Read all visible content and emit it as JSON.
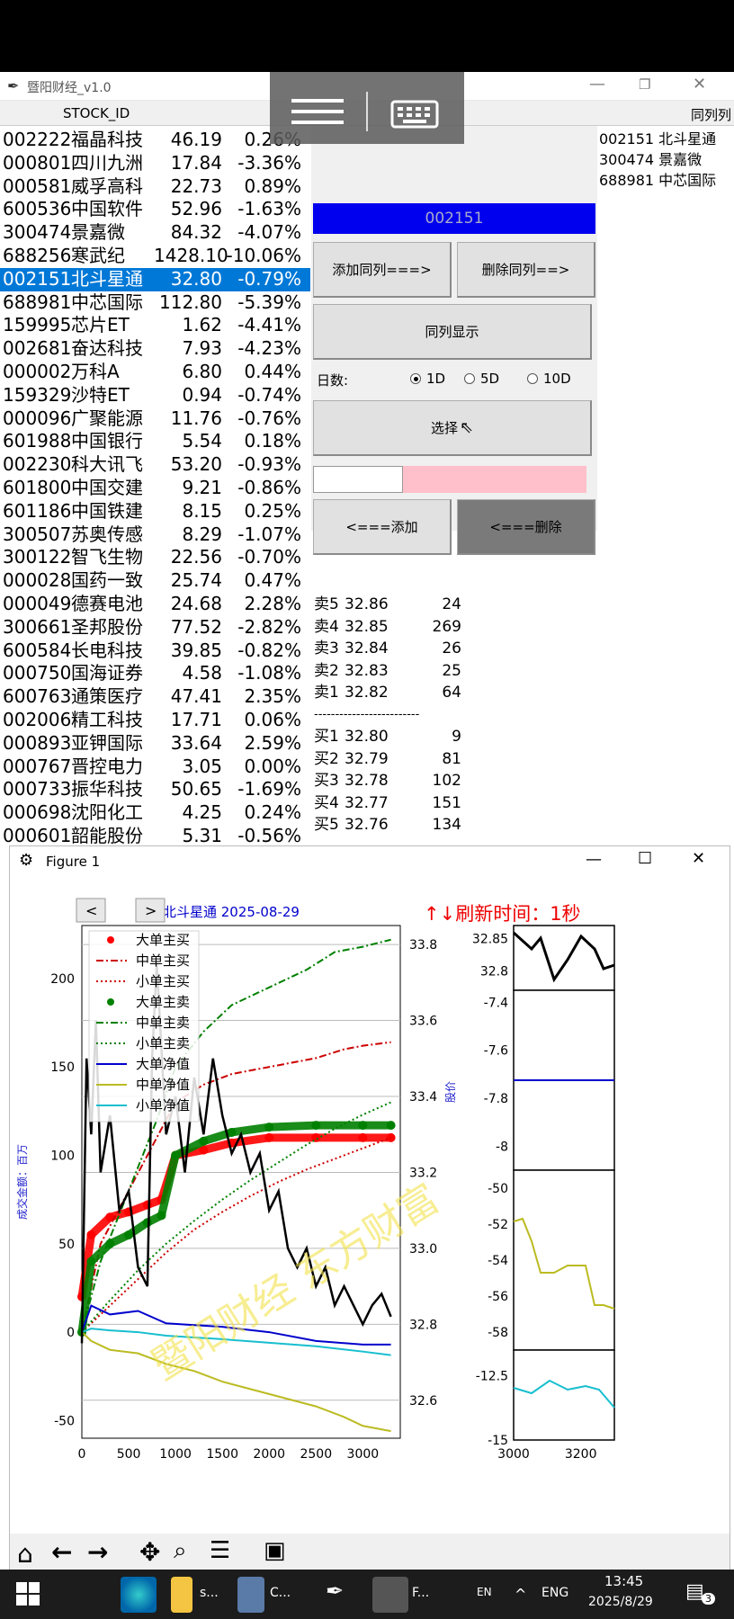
{
  "window": {
    "title": "暨阳财经_v1.0"
  },
  "header": {
    "col_stock_id": "STOCK_ID",
    "col_right": "同列列"
  },
  "stocks": [
    {
      "code": "002222",
      "name": "福晶科技",
      "price": "46.19",
      "change": "0.26%"
    },
    {
      "code": "000801",
      "name": "四川九洲",
      "price": "17.84",
      "change": "-3.36%"
    },
    {
      "code": "000581",
      "name": "威孚高科",
      "price": "22.73",
      "change": "0.89%"
    },
    {
      "code": "600536",
      "name": "中国软件",
      "price": "52.96",
      "change": "-1.63%"
    },
    {
      "code": "300474",
      "name": "景嘉微",
      "price": "84.32",
      "change": "-4.07%"
    },
    {
      "code": "688256",
      "name": "寒武纪",
      "price": "1428.10",
      "change": "-10.06%"
    },
    {
      "code": "002151",
      "name": "北斗星通",
      "price": "32.80",
      "change": "-0.79%"
    },
    {
      "code": "688981",
      "name": "中芯国际",
      "price": "112.80",
      "change": "-5.39%"
    },
    {
      "code": "159995",
      "name": "芯片ET",
      "price": "1.62",
      "change": "-4.41%"
    },
    {
      "code": "002681",
      "name": "奋达科技",
      "price": "7.93",
      "change": "-4.23%"
    },
    {
      "code": "000002",
      "name": "万科A",
      "price": "6.80",
      "change": "0.44%"
    },
    {
      "code": "159329",
      "name": "沙特ET",
      "price": "0.94",
      "change": "-0.74%"
    },
    {
      "code": "000096",
      "name": "广聚能源",
      "price": "11.76",
      "change": "-0.76%"
    },
    {
      "code": "601988",
      "name": "中国银行",
      "price": "5.54",
      "change": "0.18%"
    },
    {
      "code": "002230",
      "name": "科大讯飞",
      "price": "53.20",
      "change": "-0.93%"
    },
    {
      "code": "601800",
      "name": "中国交建",
      "price": "9.21",
      "change": "-0.86%"
    },
    {
      "code": "601186",
      "name": "中国铁建",
      "price": "8.15",
      "change": "0.25%"
    },
    {
      "code": "300507",
      "name": "苏奥传感",
      "price": "8.29",
      "change": "-1.07%"
    },
    {
      "code": "300122",
      "name": "智飞生物",
      "price": "22.56",
      "change": "-0.70%"
    },
    {
      "code": "000028",
      "name": "国药一致",
      "price": "25.74",
      "change": "0.47%"
    },
    {
      "code": "000049",
      "name": "德赛电池",
      "price": "24.68",
      "change": "2.28%"
    },
    {
      "code": "300661",
      "name": "圣邦股份",
      "price": "77.52",
      "change": "-2.82%"
    },
    {
      "code": "600584",
      "name": "长电科技",
      "price": "39.85",
      "change": "-0.82%"
    },
    {
      "code": "000750",
      "name": "国海证券",
      "price": "4.58",
      "change": "-1.08%"
    },
    {
      "code": "600763",
      "name": "通策医疗",
      "price": "47.41",
      "change": "2.35%"
    },
    {
      "code": "002006",
      "name": "精工科技",
      "price": "17.71",
      "change": "0.06%"
    },
    {
      "code": "000893",
      "name": "亚钾国际",
      "price": "33.64",
      "change": "2.59%"
    },
    {
      "code": "000767",
      "name": "晋控电力",
      "price": "3.05",
      "change": "0.00%"
    },
    {
      "code": "000733",
      "name": "振华科技",
      "price": "50.65",
      "change": "-1.69%"
    },
    {
      "code": "000698",
      "name": "沈阳化工",
      "price": "4.25",
      "change": "0.24%"
    },
    {
      "code": "000601",
      "name": "韶能股份",
      "price": "5.31",
      "change": "-0.56%"
    }
  ],
  "selected_code": "002151",
  "panel": {
    "add_btn": "添加同列===>",
    "del_btn": "删除同列==>",
    "show_btn": "同列显示",
    "days_label": "日数:",
    "radio_1d": "1D",
    "radio_5d": "5D",
    "radio_10d": "10D",
    "selected_days": "1D",
    "choose_btn": "选择",
    "add_left_btn": "<===添加",
    "del_left_btn": "<===删除"
  },
  "right_list": [
    {
      "code": "002151",
      "name": "北斗星通"
    },
    {
      "code": "300474",
      "name": "景嘉微"
    },
    {
      "code": "688981",
      "name": "中芯国际"
    }
  ],
  "orderbook": {
    "asks": [
      {
        "label": "卖5",
        "price": "32.86",
        "vol": "24"
      },
      {
        "label": "卖4",
        "price": "32.85",
        "vol": "269"
      },
      {
        "label": "卖3",
        "price": "32.84",
        "vol": "26"
      },
      {
        "label": "卖2",
        "price": "32.83",
        "vol": "25"
      },
      {
        "label": "卖1",
        "price": "32.82",
        "vol": "64"
      }
    ],
    "separator": "-------------------------",
    "bids": [
      {
        "label": "买1",
        "price": "32.80",
        "vol": "9"
      },
      {
        "label": "买2",
        "price": "32.79",
        "vol": "81"
      },
      {
        "label": "买3",
        "price": "32.78",
        "vol": "102"
      },
      {
        "label": "买4",
        "price": "32.77",
        "vol": "151"
      },
      {
        "label": "买5",
        "price": "32.76",
        "vol": "134"
      }
    ]
  },
  "figure": {
    "title": "Figure 1",
    "chart_title": "北斗星通  2025-08-29",
    "refresh": "↑↓刷新时间：1秒",
    "ylabel_left": "成交金额：百万",
    "ylabel_right": "股价",
    "watermark": "暨阳财经 东方财富",
    "legend": [
      "大单主买",
      "中单主买",
      "小单主买",
      "大单主卖",
      "中单主卖",
      "小单主卖",
      "大单净值",
      "中单净值",
      "小单净值"
    ]
  },
  "chart_data": {
    "type": "line",
    "xlim": [
      0,
      3400
    ],
    "ylim_left": [
      -60,
      230
    ],
    "ylim_right": [
      32.5,
      33.85
    ],
    "xticks": [
      0,
      500,
      1000,
      1500,
      2000,
      2500,
      3000
    ],
    "yticks_left": [
      -50,
      0,
      50,
      100,
      150,
      200
    ],
    "yticks_right": [
      32.6,
      32.8,
      33.0,
      33.2,
      33.4,
      33.6,
      33.8
    ],
    "series": [
      {
        "name": "大单主买",
        "color": "#ff0000",
        "style": "dots",
        "x": [
          0,
          100,
          300,
          500,
          700,
          850,
          1000,
          1300,
          1600,
          2000,
          2500,
          3000,
          3300
        ],
        "y": [
          20,
          55,
          65,
          68,
          72,
          75,
          100,
          103,
          107,
          110,
          110,
          110,
          110
        ]
      },
      {
        "name": "中单主买",
        "color": "#cc0000",
        "style": "dashdot",
        "x": [
          0,
          200,
          500,
          800,
          1000,
          1300,
          1600,
          2000,
          2500,
          2800,
          3000,
          3300
        ],
        "y": [
          0,
          50,
          80,
          110,
          130,
          140,
          146,
          150,
          155,
          160,
          162,
          164
        ]
      },
      {
        "name": "小单主买",
        "color": "#cc0000",
        "style": "dotted",
        "x": [
          0,
          300,
          600,
          900,
          1200,
          1500,
          1800,
          2100,
          2400,
          2700,
          3000,
          3300
        ],
        "y": [
          0,
          15,
          30,
          45,
          58,
          68,
          77,
          85,
          92,
          98,
          104,
          110
        ]
      },
      {
        "name": "大单主卖",
        "color": "#008000",
        "style": "dots",
        "x": [
          0,
          100,
          300,
          500,
          700,
          850,
          1000,
          1300,
          1600,
          2000,
          2500,
          3000,
          3300
        ],
        "y": [
          0,
          40,
          50,
          55,
          62,
          66,
          100,
          108,
          113,
          116,
          117,
          117,
          117
        ]
      },
      {
        "name": "中单主卖",
        "color": "#008000",
        "style": "dashdot",
        "x": [
          0,
          200,
          500,
          800,
          1000,
          1300,
          1600,
          2000,
          2400,
          2700,
          3000,
          3300
        ],
        "y": [
          0,
          40,
          80,
          120,
          150,
          170,
          185,
          195,
          205,
          215,
          218,
          222
        ]
      },
      {
        "name": "小单主卖",
        "color": "#008000",
        "style": "dotted",
        "x": [
          0,
          300,
          600,
          900,
          1200,
          1500,
          1800,
          2100,
          2400,
          2700,
          3000,
          3300
        ],
        "y": [
          0,
          18,
          35,
          50,
          63,
          75,
          86,
          96,
          106,
          115,
          123,
          130
        ]
      },
      {
        "name": "大单净值",
        "color": "#0000cc",
        "style": "line",
        "x": [
          0,
          100,
          300,
          600,
          900,
          1200,
          1500,
          2000,
          2500,
          3000,
          3300
        ],
        "y": [
          0,
          15,
          10,
          12,
          5,
          4,
          3,
          0,
          -5,
          -7,
          -7
        ]
      },
      {
        "name": "中单净值",
        "color": "#bbbb22",
        "style": "line",
        "x": [
          0,
          100,
          300,
          600,
          900,
          1200,
          1500,
          2000,
          2500,
          2800,
          3000,
          3300
        ],
        "y": [
          0,
          -5,
          -10,
          -12,
          -18,
          -22,
          -28,
          -35,
          -42,
          -48,
          -53,
          -56
        ]
      },
      {
        "name": "小单净值",
        "color": "#17becf",
        "style": "line",
        "x": [
          0,
          100,
          300,
          600,
          900,
          1200,
          1500,
          2000,
          2500,
          3000,
          3300
        ],
        "y": [
          0,
          2,
          1,
          0,
          -2,
          -3,
          -4,
          -6,
          -8,
          -11,
          -13
        ]
      },
      {
        "name": "股价",
        "color": "#000000",
        "style": "line",
        "axis": "right",
        "x": [
          0,
          50,
          100,
          150,
          200,
          300,
          400,
          500,
          600,
          700,
          750,
          800,
          900,
          1000,
          1100,
          1200,
          1300,
          1400,
          1500,
          1600,
          1700,
          1800,
          1900,
          2000,
          2100,
          2200,
          2300,
          2400,
          2500,
          2600,
          2700,
          2800,
          2900,
          3000,
          3100,
          3200,
          3300
        ],
        "y": [
          32.75,
          33.5,
          33.3,
          33.6,
          33.2,
          33.35,
          33.1,
          33.15,
          32.95,
          32.9,
          33.5,
          33.75,
          33.3,
          33.4,
          33.2,
          33.45,
          33.3,
          33.5,
          33.35,
          33.25,
          33.3,
          33.2,
          33.25,
          33.1,
          33.15,
          33.0,
          32.95,
          33.0,
          32.9,
          32.95,
          32.85,
          32.9,
          32.85,
          32.8,
          32.85,
          32.88,
          32.82
        ]
      }
    ],
    "mini": {
      "xlim": [
        3000,
        3300
      ],
      "xticks": [
        3000,
        3200
      ],
      "price_yticks": [
        32.8,
        32.85
      ],
      "net_large_yticks": [
        -8.0,
        -7.8,
        -7.6,
        -7.4
      ],
      "net_mid_yticks": [
        -58,
        -56,
        -54,
        -52,
        -50
      ],
      "net_small_yticks": [
        -15.0,
        -12.5
      ]
    }
  },
  "taskbar": {
    "item1": "s...",
    "item2": "C...",
    "item3": "F...",
    "lang1": "EN",
    "lang2": "ENG",
    "time": "13:45",
    "date": "2025/8/29",
    "notif": "3"
  }
}
